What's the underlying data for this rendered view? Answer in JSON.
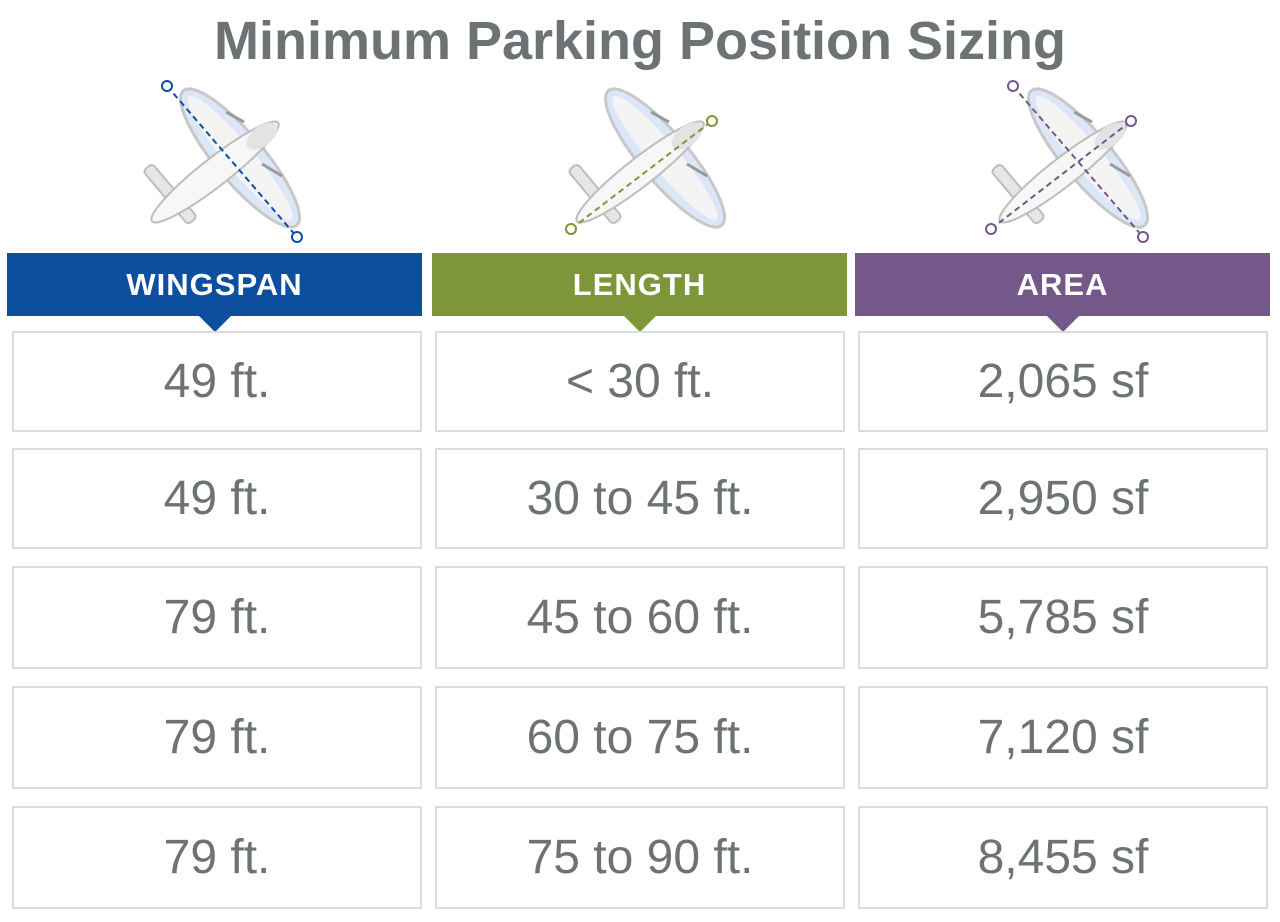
{
  "title": "Minimum Parking Position Sizing",
  "table": {
    "headers": [
      "WINGSPAN",
      "LENGTH",
      "AREA"
    ],
    "rows": [
      [
        "49 ft.",
        "< 30 ft.",
        "2,065 sf"
      ],
      [
        "49 ft.",
        "30 to 45 ft.",
        "2,950 sf"
      ],
      [
        "79 ft.",
        "45 to 60 ft.",
        "5,785 sf"
      ],
      [
        "79 ft.",
        "60 to 75 ft.",
        "7,120 sf"
      ],
      [
        "79 ft.",
        "75 to 90 ft.",
        "8,455 sf"
      ]
    ]
  }
}
